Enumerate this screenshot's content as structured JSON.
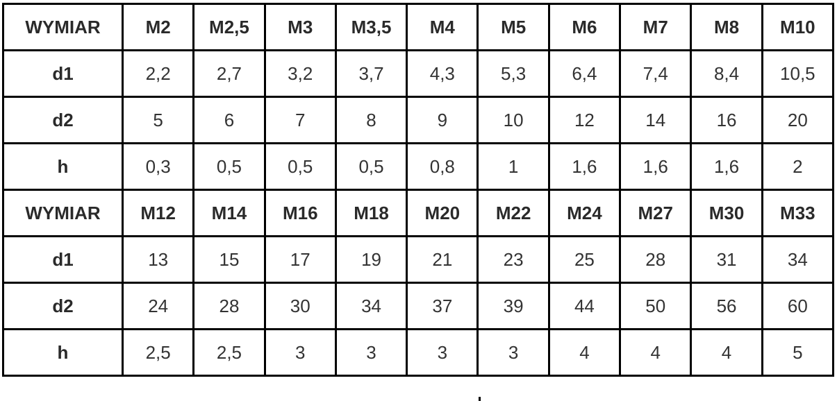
{
  "tables": [
    {
      "header": [
        "WYMIAR",
        "M2",
        "M2,5",
        "M3",
        "M3,5",
        "M4",
        "M5",
        "M6",
        "M7",
        "M8",
        "M10"
      ],
      "rows": [
        [
          "d1",
          "2,2",
          "2,7",
          "3,2",
          "3,7",
          "4,3",
          "5,3",
          "6,4",
          "7,4",
          "8,4",
          "10,5"
        ],
        [
          "d2",
          "5",
          "6",
          "7",
          "8",
          "9",
          "10",
          "12",
          "14",
          "16",
          "20"
        ],
        [
          "h",
          "0,3",
          "0,5",
          "0,5",
          "0,5",
          "0,8",
          "1",
          "1,6",
          "1,6",
          "1,6",
          "2"
        ]
      ]
    },
    {
      "header": [
        "WYMIAR",
        "M12",
        "M14",
        "M16",
        "M18",
        "M20",
        "M22",
        "M24",
        "M27",
        "M30",
        "M33"
      ],
      "rows": [
        [
          "d1",
          "13",
          "15",
          "17",
          "19",
          "21",
          "23",
          "25",
          "28",
          "31",
          "34"
        ],
        [
          "d2",
          "24",
          "28",
          "30",
          "34",
          "37",
          "39",
          "44",
          "50",
          "56",
          "60"
        ],
        [
          "h",
          "2,5",
          "2,5",
          "3",
          "3",
          "3",
          "3",
          "4",
          "4",
          "4",
          "5"
        ]
      ]
    }
  ]
}
